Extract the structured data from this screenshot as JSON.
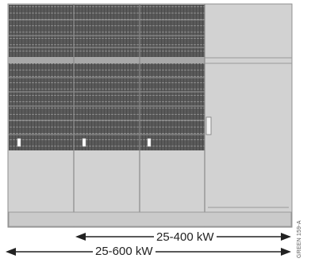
{
  "figure": {
    "dimension_short": "25-400 kW",
    "dimension_long": "25-600 kW",
    "side_code": "GREEN 159-A",
    "cabinet_units": 3,
    "colors": {
      "cabinet_fill": "#d0d0d0",
      "cabinet_edge": "#8f8f8f",
      "rack_top": "#565656",
      "rack_line": "#7a7a7a",
      "band": "#a5a5a5",
      "arrow": "#222222"
    },
    "icons": [
      "rack-module",
      "door-handle",
      "led-indicator",
      "dimension-arrow"
    ]
  }
}
